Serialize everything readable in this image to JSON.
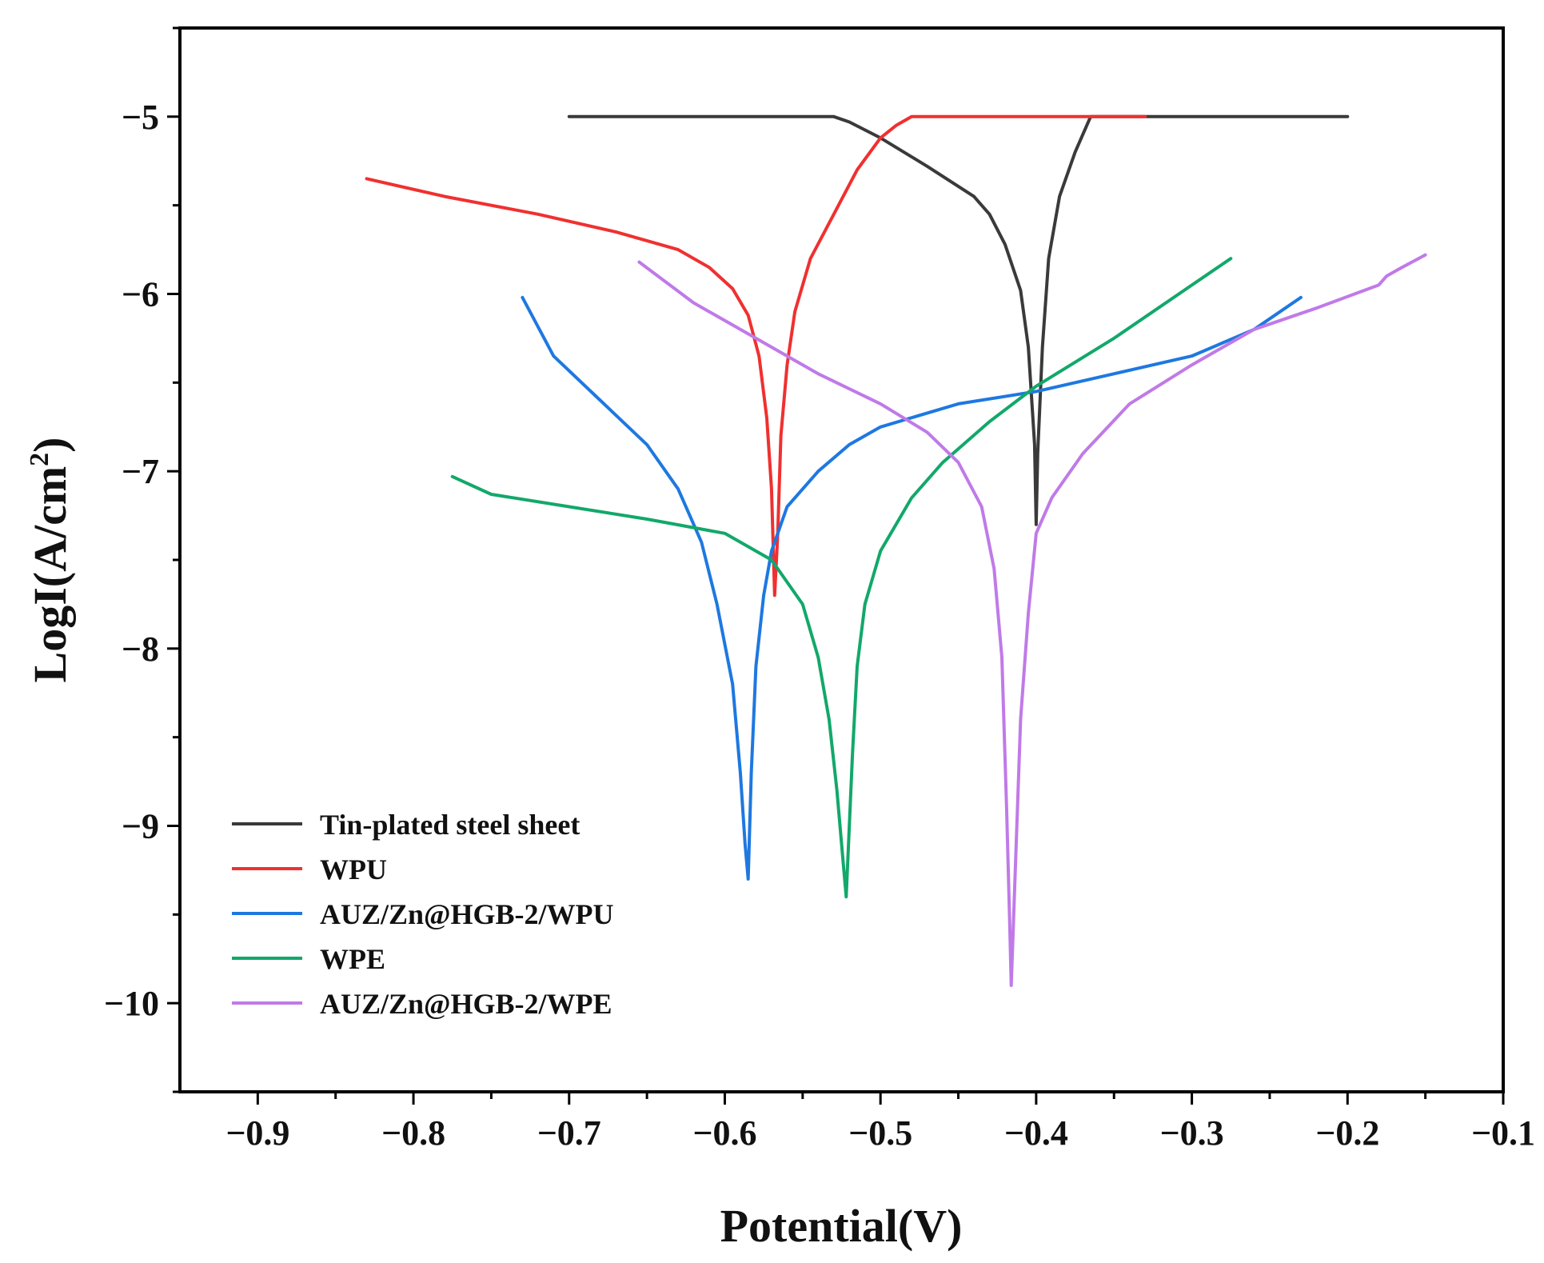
{
  "chart_data": {
    "type": "line",
    "title": "",
    "xlabel": "Potential(V)",
    "ylabel_main": "LogI(A/cm",
    "ylabel_sup": "2",
    "ylabel_close": ")",
    "xlim": [
      -0.95,
      -0.1
    ],
    "ylim": [
      -10.5,
      -4.5
    ],
    "xticks": [
      -0.9,
      -0.8,
      -0.7,
      -0.6,
      -0.5,
      -0.4,
      -0.3,
      -0.2,
      -0.1
    ],
    "xtick_labels": [
      "−0.9",
      "−0.8",
      "−0.7",
      "−0.6",
      "−0.5",
      "−0.4",
      "−0.3",
      "−0.2",
      "−0.1"
    ],
    "yticks": [
      -5,
      -6,
      -7,
      -8,
      -9,
      -10
    ],
    "ytick_labels": [
      "−5",
      "−6",
      "−7",
      "−8",
      "−9",
      "−10"
    ],
    "legend_position": "bottom-left",
    "series": [
      {
        "name": "Tin-plated steel sheet",
        "color": "#3a3a3a",
        "x": [
          -0.7,
          -0.6,
          -0.53,
          -0.52,
          -0.5,
          -0.47,
          -0.44,
          -0.43,
          -0.42,
          -0.41,
          -0.405,
          -0.401,
          -0.4,
          -0.399,
          -0.396,
          -0.392,
          -0.385,
          -0.375,
          -0.365,
          -0.35,
          -0.3,
          -0.25,
          -0.2
        ],
        "y": [
          -5.0,
          -5.0,
          -5.0,
          -5.03,
          -5.12,
          -5.28,
          -5.45,
          -5.55,
          -5.72,
          -5.98,
          -6.3,
          -6.85,
          -7.3,
          -6.9,
          -6.3,
          -5.8,
          -5.45,
          -5.2,
          -5.0,
          -5.0,
          -5.0,
          -5.0,
          -5.0
        ]
      },
      {
        "name": "WPU",
        "color": "#f03030",
        "x": [
          -0.83,
          -0.78,
          -0.72,
          -0.67,
          -0.63,
          -0.61,
          -0.595,
          -0.585,
          -0.578,
          -0.573,
          -0.57,
          -0.568,
          -0.566,
          -0.564,
          -0.56,
          -0.555,
          -0.545,
          -0.53,
          -0.515,
          -0.5,
          -0.49,
          -0.48,
          -0.45,
          -0.4,
          -0.35,
          -0.33
        ],
        "y": [
          -5.35,
          -5.45,
          -5.55,
          -5.65,
          -5.75,
          -5.85,
          -5.97,
          -6.12,
          -6.35,
          -6.7,
          -7.1,
          -7.7,
          -7.35,
          -6.8,
          -6.4,
          -6.1,
          -5.8,
          -5.55,
          -5.3,
          -5.12,
          -5.05,
          -5.0,
          -5.0,
          -5.0,
          -5.0,
          -5.0
        ]
      },
      {
        "name": "AUZ/Zn@HGB-2/WPU",
        "color": "#1e78e0",
        "x": [
          -0.73,
          -0.71,
          -0.68,
          -0.65,
          -0.63,
          -0.615,
          -0.605,
          -0.595,
          -0.59,
          -0.587,
          -0.585,
          -0.583,
          -0.58,
          -0.575,
          -0.57,
          -0.56,
          -0.54,
          -0.52,
          -0.5,
          -0.45,
          -0.4,
          -0.35,
          -0.3,
          -0.26,
          -0.23
        ],
        "y": [
          -6.02,
          -6.35,
          -6.6,
          -6.85,
          -7.1,
          -7.4,
          -7.75,
          -8.2,
          -8.7,
          -9.1,
          -9.3,
          -8.7,
          -8.1,
          -7.7,
          -7.45,
          -7.2,
          -7.0,
          -6.85,
          -6.75,
          -6.62,
          -6.55,
          -6.45,
          -6.35,
          -6.2,
          -6.02
        ]
      },
      {
        "name": "WPE",
        "color": "#12a86a",
        "x": [
          -0.775,
          -0.75,
          -0.7,
          -0.65,
          -0.6,
          -0.57,
          -0.55,
          -0.54,
          -0.533,
          -0.528,
          -0.524,
          -0.522,
          -0.52,
          -0.518,
          -0.515,
          -0.51,
          -0.5,
          -0.48,
          -0.46,
          -0.43,
          -0.4,
          -0.35,
          -0.3,
          -0.275
        ],
        "y": [
          -7.03,
          -7.13,
          -7.2,
          -7.27,
          -7.35,
          -7.5,
          -7.75,
          -8.05,
          -8.4,
          -8.8,
          -9.2,
          -9.4,
          -9.0,
          -8.6,
          -8.1,
          -7.75,
          -7.45,
          -7.15,
          -6.95,
          -6.72,
          -6.52,
          -6.25,
          -5.95,
          -5.8
        ]
      },
      {
        "name": "AUZ/Zn@HGB-2/WPE",
        "color": "#c07ae8",
        "x": [
          -0.655,
          -0.62,
          -0.58,
          -0.54,
          -0.5,
          -0.47,
          -0.45,
          -0.435,
          -0.427,
          -0.422,
          -0.419,
          -0.417,
          -0.416,
          -0.414,
          -0.41,
          -0.405,
          -0.4,
          -0.39,
          -0.37,
          -0.34,
          -0.3,
          -0.26,
          -0.22,
          -0.18,
          -0.175,
          -0.165,
          -0.15
        ],
        "y": [
          -5.82,
          -6.05,
          -6.25,
          -6.45,
          -6.62,
          -6.78,
          -6.95,
          -7.2,
          -7.55,
          -8.05,
          -8.9,
          -9.55,
          -9.9,
          -9.4,
          -8.4,
          -7.8,
          -7.35,
          -7.15,
          -6.9,
          -6.62,
          -6.4,
          -6.2,
          -6.08,
          -5.95,
          -5.9,
          -5.85,
          -5.78
        ]
      }
    ]
  }
}
